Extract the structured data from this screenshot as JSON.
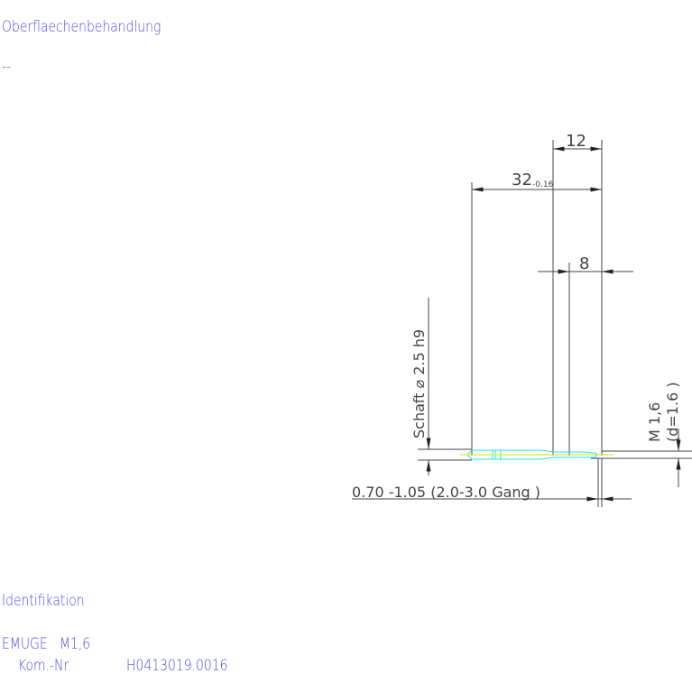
{
  "header": {
    "surface_label": "Oberflaechenbehandlung",
    "surface_value": "--"
  },
  "drawing": {
    "dim_total": "32",
    "dim_total_tol": "-0.16",
    "dim_12": "12",
    "dim_8": "8",
    "shank": "Schaft ⌀ 2.5  h9",
    "thread": "M 1,6",
    "thread_d": "(d=1.6 )",
    "chamfer": "0.70 -1.05 (2.0-3.0 Gang  )",
    "colors": {
      "lines": "#444444",
      "tool": "#22e0e8",
      "axis": "#e0e040",
      "text": "#4a4ae6"
    }
  },
  "footer": {
    "ident_label": "Identifikation",
    "maker": "EMUGE   M1,6",
    "kom_label": "Kom.-Nr.",
    "kom_value": "H0413019.0016"
  }
}
